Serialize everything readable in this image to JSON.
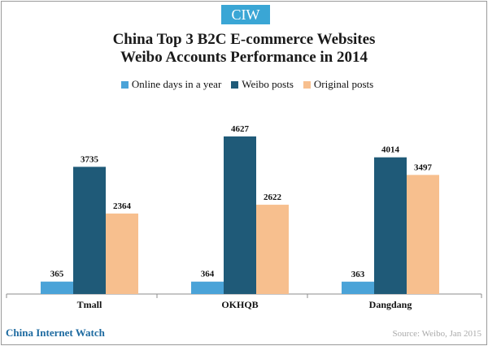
{
  "badge": "CIW",
  "title_line1": "China Top 3 B2C E-commerce Websites",
  "title_line2": "Weibo Accounts Performance in 2014",
  "footer": {
    "brand": "China Internet Watch",
    "source": "Source: Weibo, Jan 2015"
  },
  "colors": {
    "online_days": "#4aa3d8",
    "weibo_posts": "#1f5a78",
    "original_posts": "#f7bf8e",
    "badge_bg": "#3aa6d5",
    "brand_text": "#1d6aa0"
  },
  "chart_data": {
    "type": "bar",
    "title": "China Top 3 B2C E-commerce Websites Weibo Accounts Performance in 2014",
    "categories": [
      "Tmall",
      "OKHQB",
      "Dangdang"
    ],
    "series": [
      {
        "name": "Online days in a year",
        "values": [
          365,
          364,
          363
        ]
      },
      {
        "name": "Weibo posts",
        "values": [
          3735,
          4627,
          4014
        ]
      },
      {
        "name": "Original posts",
        "values": [
          2364,
          2622,
          3497
        ]
      }
    ],
    "ylim": [
      0,
      4627
    ],
    "grid": false,
    "legend": "top"
  }
}
